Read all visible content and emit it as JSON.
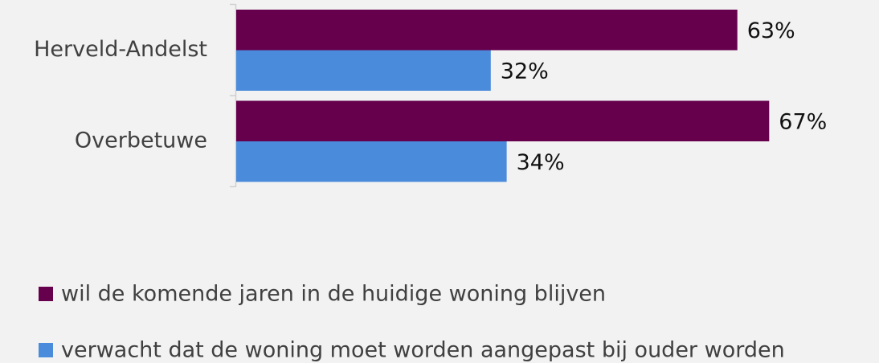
{
  "chart_data": {
    "type": "bar",
    "orientation": "horizontal",
    "categories": [
      "Herveld-Andelst",
      "Overbetuwe"
    ],
    "series": [
      {
        "name": "wil de komende jaren in de huidige woning blijven",
        "color": "#66004d",
        "values": [
          63,
          67
        ],
        "value_labels": [
          "63%",
          "67%"
        ]
      },
      {
        "name": "verwacht dat de woning moet worden aangepast bij ouder worden",
        "color": "#4a8bdb",
        "values": [
          32,
          34
        ],
        "value_labels": [
          "32%",
          "34%"
        ]
      }
    ],
    "legend": "bottom"
  }
}
